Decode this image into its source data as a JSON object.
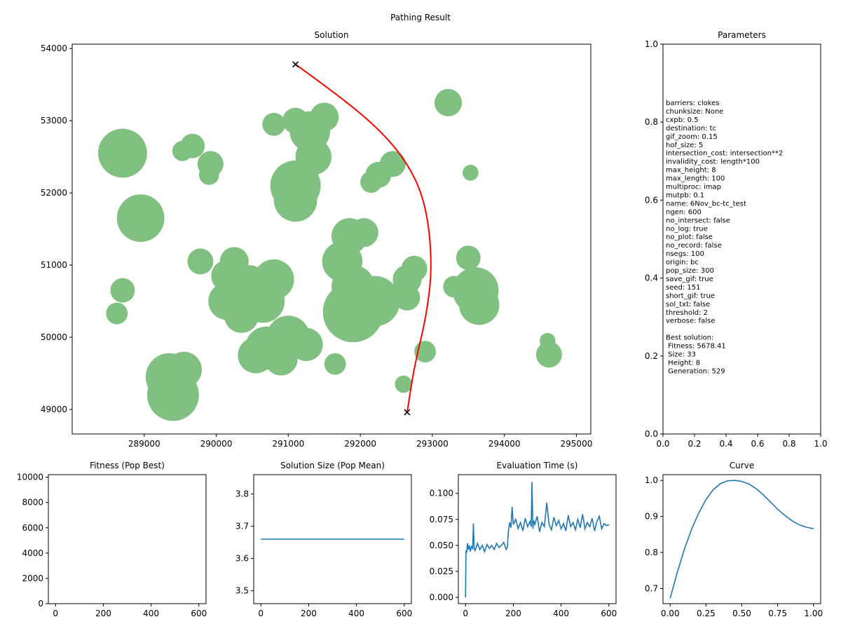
{
  "figure": {
    "title": "Pathing Result"
  },
  "colors": {
    "obstacle": "#80c080",
    "path": "#ff0000",
    "line": "#1f77b4",
    "endpoint": "#000000"
  },
  "chart_data": [
    {
      "id": "solution",
      "type": "scatter",
      "title": "Solution",
      "xlabel": "",
      "ylabel": "",
      "xlim": [
        288000,
        295200
      ],
      "ylim": [
        48660,
        54060
      ],
      "xticks": [
        289000,
        290000,
        291000,
        292000,
        293000,
        294000,
        295000
      ],
      "yticks": [
        49000,
        50000,
        51000,
        52000,
        53000,
        54000
      ],
      "obstacles": [
        {
          "x": 288700,
          "y": 52550,
          "r": 340
        },
        {
          "x": 288600,
          "y": 52650,
          "r": 180
        },
        {
          "x": 288950,
          "y": 51650,
          "r": 330
        },
        {
          "x": 288700,
          "y": 50650,
          "r": 170
        },
        {
          "x": 288620,
          "y": 50330,
          "r": 150
        },
        {
          "x": 289350,
          "y": 49450,
          "r": 330
        },
        {
          "x": 289400,
          "y": 49200,
          "r": 360
        },
        {
          "x": 289550,
          "y": 49550,
          "r": 250
        },
        {
          "x": 289670,
          "y": 52650,
          "r": 170
        },
        {
          "x": 289530,
          "y": 52580,
          "r": 140
        },
        {
          "x": 289920,
          "y": 52400,
          "r": 180
        },
        {
          "x": 289900,
          "y": 52250,
          "r": 140
        },
        {
          "x": 289780,
          "y": 51050,
          "r": 180
        },
        {
          "x": 290150,
          "y": 50850,
          "r": 220
        },
        {
          "x": 290450,
          "y": 50700,
          "r": 300
        },
        {
          "x": 290150,
          "y": 50500,
          "r": 260
        },
        {
          "x": 290350,
          "y": 50300,
          "r": 240
        },
        {
          "x": 290650,
          "y": 50500,
          "r": 300
        },
        {
          "x": 290800,
          "y": 50800,
          "r": 280
        },
        {
          "x": 290250,
          "y": 51050,
          "r": 200
        },
        {
          "x": 290700,
          "y": 49850,
          "r": 300
        },
        {
          "x": 291000,
          "y": 50000,
          "r": 300
        },
        {
          "x": 290550,
          "y": 49750,
          "r": 250
        },
        {
          "x": 291250,
          "y": 49900,
          "r": 230
        },
        {
          "x": 290900,
          "y": 49700,
          "r": 230
        },
        {
          "x": 290800,
          "y": 52950,
          "r": 160
        },
        {
          "x": 291100,
          "y": 53000,
          "r": 180
        },
        {
          "x": 291300,
          "y": 52850,
          "r": 280
        },
        {
          "x": 291350,
          "y": 52500,
          "r": 250
        },
        {
          "x": 291500,
          "y": 53050,
          "r": 200
        },
        {
          "x": 291100,
          "y": 52100,
          "r": 350
        },
        {
          "x": 291100,
          "y": 51900,
          "r": 300
        },
        {
          "x": 291850,
          "y": 51400,
          "r": 250
        },
        {
          "x": 292050,
          "y": 51450,
          "r": 200
        },
        {
          "x": 291750,
          "y": 51050,
          "r": 280
        },
        {
          "x": 291900,
          "y": 50700,
          "r": 300
        },
        {
          "x": 291900,
          "y": 50350,
          "r": 420
        },
        {
          "x": 292200,
          "y": 50500,
          "r": 350
        },
        {
          "x": 291650,
          "y": 49630,
          "r": 150
        },
        {
          "x": 292250,
          "y": 52250,
          "r": 180
        },
        {
          "x": 292450,
          "y": 52400,
          "r": 180
        },
        {
          "x": 292150,
          "y": 52150,
          "r": 150
        },
        {
          "x": 292650,
          "y": 50800,
          "r": 200
        },
        {
          "x": 292650,
          "y": 50550,
          "r": 180
        },
        {
          "x": 292750,
          "y": 50950,
          "r": 180
        },
        {
          "x": 292600,
          "y": 49350,
          "r": 120
        },
        {
          "x": 292900,
          "y": 49800,
          "r": 150
        },
        {
          "x": 293220,
          "y": 53250,
          "r": 190
        },
        {
          "x": 293530,
          "y": 52280,
          "r": 110
        },
        {
          "x": 293500,
          "y": 51100,
          "r": 170
        },
        {
          "x": 293600,
          "y": 50650,
          "r": 320
        },
        {
          "x": 293650,
          "y": 50450,
          "r": 280
        },
        {
          "x": 293300,
          "y": 50700,
          "r": 150
        },
        {
          "x": 294600,
          "y": 49950,
          "r": 110
        },
        {
          "x": 294620,
          "y": 49760,
          "r": 180
        }
      ],
      "path": [
        [
          291100,
          53780
        ],
        [
          291700,
          53350
        ],
        [
          292300,
          52850
        ],
        [
          292700,
          52350
        ],
        [
          292920,
          51800
        ],
        [
          293000,
          51000
        ],
        [
          292920,
          50300
        ],
        [
          292750,
          49600
        ],
        [
          292650,
          48960
        ]
      ],
      "endpoints": [
        [
          291100,
          53780
        ],
        [
          292650,
          48960
        ]
      ]
    },
    {
      "id": "parameters",
      "type": "scatter",
      "title": "Parameters",
      "xlabel": "",
      "ylabel": "",
      "xlim": [
        0,
        1
      ],
      "ylim": [
        0,
        1
      ],
      "xticks": [
        "0.0",
        "0.2",
        "0.4",
        "0.6",
        "0.8",
        "1.0"
      ],
      "yticks": [
        "0.0",
        "0.2",
        "0.4",
        "0.6",
        "0.8",
        "1.0"
      ],
      "text_lines": [
        "barriers: clokes",
        "chunksize: None",
        "cxpb: 0.5",
        "destination: tc",
        "gif_zoom: 0.15",
        "hof_size: 5",
        "intersection_cost: intersection**2",
        "invalidity_cost: length*100",
        "max_height: 8",
        "max_length: 100",
        "multiproc: imap",
        "mutpb: 0.1",
        "name: 6Nov_bc-tc_test",
        "ngen: 600",
        "no_intersect: false",
        "no_log: true",
        "no_plot: false",
        "no_record: false",
        "nsegs: 100",
        "origin: bc",
        "pop_size: 300",
        "save_gif: true",
        "seed: 151",
        "short_gif: true",
        "sol_txt: false",
        "threshold: 2",
        "verbose: false",
        "",
        "Best solution:",
        " Fitness: 5678.41",
        " Size: 33",
        " Height: 8",
        " Generation: 529"
      ]
    },
    {
      "id": "fitness",
      "type": "line",
      "title": "Fitness (Pop Best)",
      "xlabel": "",
      "ylabel": "",
      "xlim": [
        -30,
        630
      ],
      "ylim": [
        0,
        10200
      ],
      "xticks": [
        0,
        200,
        400,
        600
      ],
      "yticks": [
        0,
        2000,
        4000,
        6000,
        8000,
        10000
      ],
      "series": []
    },
    {
      "id": "size",
      "type": "line",
      "title": "Solution Size (Pop Mean)",
      "xlabel": "",
      "ylabel": "",
      "xlim": [
        -30,
        630
      ],
      "ylim": [
        3.46,
        3.86
      ],
      "xticks": [
        0,
        200,
        400,
        600
      ],
      "yticks": [
        "3.5",
        "3.6",
        "3.7",
        "3.8"
      ],
      "series": [
        {
          "x": [
            0,
            600
          ],
          "y": [
            3.66,
            3.66
          ]
        }
      ]
    },
    {
      "id": "evaltime",
      "type": "line",
      "title": "Evaluation Time (s)",
      "xlabel": "",
      "ylabel": "",
      "xlim": [
        -30,
        630
      ],
      "ylim": [
        -0.006,
        0.118
      ],
      "xticks": [
        0,
        200,
        400,
        600
      ],
      "yticks": [
        "0.000",
        "0.025",
        "0.050",
        "0.075",
        "0.100"
      ],
      "series": [
        {
          "x": [
            0,
            2,
            5,
            8,
            12,
            16,
            20,
            25,
            30,
            33,
            36,
            40,
            50,
            60,
            70,
            80,
            90,
            100,
            110,
            120,
            130,
            140,
            150,
            160,
            170,
            175,
            180,
            185,
            190,
            195,
            200,
            210,
            220,
            230,
            240,
            250,
            260,
            270,
            275,
            278,
            282,
            285,
            290,
            300,
            310,
            320,
            330,
            340,
            350,
            360,
            370,
            380,
            390,
            400,
            410,
            420,
            430,
            440,
            450,
            460,
            470,
            480,
            490,
            500,
            510,
            520,
            530,
            540,
            550,
            560,
            570,
            580,
            590,
            600
          ],
          "y": [
            0,
            0.045,
            0.043,
            0.052,
            0.046,
            0.05,
            0.044,
            0.049,
            0.047,
            0.071,
            0.048,
            0.045,
            0.052,
            0.046,
            0.05,
            0.044,
            0.051,
            0.047,
            0.05,
            0.046,
            0.052,
            0.048,
            0.05,
            0.053,
            0.046,
            0.048,
            0.065,
            0.072,
            0.067,
            0.087,
            0.07,
            0.075,
            0.066,
            0.072,
            0.064,
            0.076,
            0.068,
            0.073,
            0.068,
            0.111,
            0.066,
            0.074,
            0.07,
            0.078,
            0.063,
            0.072,
            0.068,
            0.091,
            0.07,
            0.065,
            0.077,
            0.069,
            0.074,
            0.066,
            0.071,
            0.064,
            0.079,
            0.068,
            0.072,
            0.065,
            0.075,
            0.067,
            0.08,
            0.066,
            0.072,
            0.068,
            0.076,
            0.064,
            0.073,
            0.078,
            0.066,
            0.071,
            0.069,
            0.07
          ]
        }
      ]
    },
    {
      "id": "curve",
      "type": "line",
      "title": "Curve",
      "xlabel": "",
      "ylabel": "",
      "xlim": [
        -0.05,
        1.05
      ],
      "ylim": [
        0.658,
        1.016
      ],
      "xticks": [
        "0.00",
        "0.25",
        "0.50",
        "0.75",
        "1.00"
      ],
      "yticks": [
        "0.7",
        "0.8",
        "0.9",
        "1.0"
      ],
      "series": [
        {
          "x": [
            0,
            0.05,
            0.1,
            0.15,
            0.2,
            0.25,
            0.3,
            0.35,
            0.4,
            0.45,
            0.5,
            0.55,
            0.6,
            0.65,
            0.7,
            0.75,
            0.8,
            0.85,
            0.9,
            0.95,
            1.0
          ],
          "y": [
            0.673,
            0.745,
            0.81,
            0.865,
            0.91,
            0.947,
            0.974,
            0.991,
            0.999,
            1.0,
            0.997,
            0.99,
            0.977,
            0.96,
            0.94,
            0.92,
            0.903,
            0.888,
            0.877,
            0.87,
            0.866
          ]
        }
      ]
    }
  ]
}
